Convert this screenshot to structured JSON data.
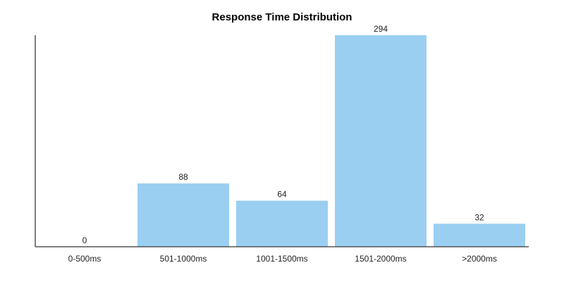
{
  "chart_data": {
    "type": "bar",
    "title": "Response Time Distribution",
    "xlabel": "",
    "ylabel": "",
    "categories": [
      "0-500ms",
      "501-1000ms",
      "1001-1500ms",
      "1501-2000ms",
      ">2000ms"
    ],
    "values": [
      0,
      88,
      64,
      294,
      32
    ],
    "ylim": [
      0,
      294
    ],
    "grid": false,
    "legend": "none",
    "data_labels": true,
    "colors": {
      "bar": "#9ACFF2",
      "axis": "#555555",
      "text": "#222222"
    }
  }
}
